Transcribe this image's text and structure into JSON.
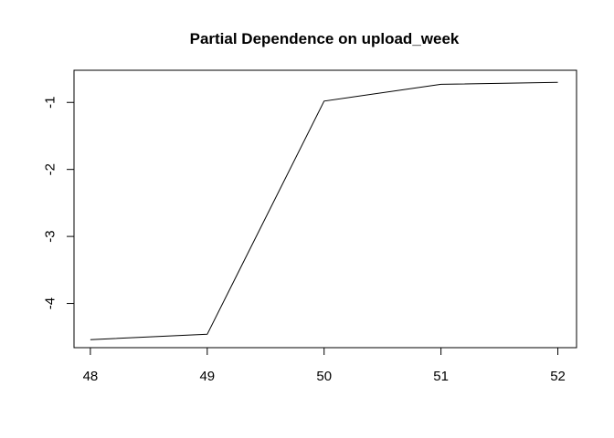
{
  "chart_data": {
    "type": "line",
    "title": "Partial Dependence on upload_week",
    "xlabel": "",
    "ylabel": "",
    "x": [
      48,
      49,
      50,
      51,
      52
    ],
    "series": [
      {
        "values": [
          -4.54,
          -4.46,
          -0.98,
          -0.73,
          -0.7
        ]
      }
    ],
    "xticks": [
      48,
      49,
      50,
      51,
      52
    ],
    "yticks": [
      -1,
      -2,
      -3,
      -4
    ],
    "xlim": [
      47.86,
      52.16
    ],
    "ylim": [
      -4.66,
      -0.52
    ],
    "grid": false,
    "line_color": "#000000"
  }
}
